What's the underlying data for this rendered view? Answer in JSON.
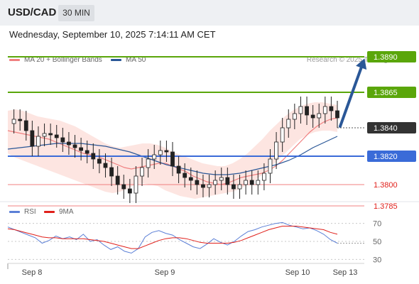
{
  "header": {
    "symbol": "USD/CAD",
    "timeframe": "30 MIN"
  },
  "datetime": "Wednesday, September 10, 2025 7:14:11 AM CET",
  "legend": {
    "items": [
      {
        "label": "MA 20 + Bollinger Bands",
        "color": "#f08080"
      },
      {
        "label": "MA 50",
        "color": "#2a5797"
      }
    ],
    "copyright": "Research © 2025 Trading Central"
  },
  "rsi_legend": {
    "items": [
      {
        "label": "RSI",
        "color": "#5b7fd6"
      },
      {
        "label": "9MA",
        "color": "#e0201b"
      }
    ]
  },
  "chart_data": [
    {
      "type": "candlestick",
      "price_range": [
        1.3775,
        1.3895
      ],
      "last_price": 1.384,
      "levels": [
        {
          "label": "1.3890",
          "value": 1.389,
          "kind": "resistance",
          "color": "#5aa60a"
        },
        {
          "label": "1.3865",
          "value": 1.3865,
          "kind": "resistance",
          "color": "#5aa60a"
        },
        {
          "label": "1.3840",
          "value": 1.384,
          "kind": "last",
          "color": "#333333"
        },
        {
          "label": "1.3820",
          "value": 1.382,
          "kind": "pivot",
          "color": "#3a6bd8"
        },
        {
          "label": "1.3800",
          "value": 1.38,
          "kind": "support",
          "color": "#f08080"
        },
        {
          "label": "1.3785",
          "value": 1.3785,
          "kind": "support",
          "color": "#f08080"
        }
      ],
      "close_path": [
        1.3843,
        1.3846,
        1.3845,
        1.3838,
        1.3827,
        1.3834,
        1.3836,
        1.3835,
        1.3833,
        1.383,
        1.3828,
        1.3826,
        1.3824,
        1.3822,
        1.3818,
        1.3815,
        1.3812,
        1.3806,
        1.38,
        1.3797,
        1.3794,
        1.3806,
        1.3812,
        1.3818,
        1.3821,
        1.3824,
        1.3823,
        1.3813,
        1.3808,
        1.3805,
        1.3803,
        1.38,
        1.3798,
        1.38,
        1.3803,
        1.3805,
        1.38,
        1.3797,
        1.38,
        1.3803,
        1.38,
        1.3803,
        1.3808,
        1.3818,
        1.383,
        1.384,
        1.3846,
        1.385,
        1.3855,
        1.3849,
        1.3847,
        1.385,
        1.3855,
        1.3852,
        1.3847
      ],
      "ma20": [
        1.3838,
        1.3837,
        1.3836,
        1.3835,
        1.3834,
        1.3833,
        1.3832,
        1.383,
        1.3828,
        1.3826,
        1.3824,
        1.3822,
        1.3821,
        1.382,
        1.3818,
        1.3816,
        1.3814,
        1.3812,
        1.3811,
        1.3812,
        1.3813,
        1.3814,
        1.3815,
        1.3815,
        1.3813,
        1.3811,
        1.3809,
        1.3806,
        1.3804,
        1.3802,
        1.3801,
        1.38,
        1.3801,
        1.3803,
        1.3805,
        1.3806,
        1.3807,
        1.3808,
        1.381,
        1.3813,
        1.3817,
        1.3822,
        1.3827,
        1.3832,
        1.3837,
        1.3841,
        1.3844,
        1.3846,
        1.3847
      ],
      "bb_upper": [
        1.3852,
        1.3853,
        1.3852,
        1.385,
        1.3848,
        1.3847,
        1.3846,
        1.3845,
        1.3843,
        1.3841,
        1.3838,
        1.3835,
        1.3832,
        1.3829,
        1.3827,
        1.3826,
        1.3827,
        1.3828,
        1.3829,
        1.3829,
        1.3828,
        1.3826,
        1.3823,
        1.3821,
        1.3819,
        1.3817,
        1.3815,
        1.3814,
        1.3813,
        1.3813,
        1.3815,
        1.3818,
        1.3822,
        1.3827,
        1.3832,
        1.3838,
        1.3843,
        1.3848,
        1.3852,
        1.3855,
        1.3857,
        1.3858,
        1.3858,
        1.3857,
        1.3856
      ],
      "bb_lower": [
        1.3822,
        1.3819,
        1.3817,
        1.3815,
        1.3813,
        1.3811,
        1.3809,
        1.3807,
        1.3805,
        1.3803,
        1.3801,
        1.3799,
        1.3797,
        1.3795,
        1.3794,
        1.3795,
        1.3797,
        1.38,
        1.3801,
        1.38,
        1.3799,
        1.3796,
        1.3794,
        1.3792,
        1.3791,
        1.379,
        1.3791,
        1.3792,
        1.3793,
        1.3794,
        1.3795,
        1.3797,
        1.38,
        1.3803,
        1.3807,
        1.3812,
        1.3817,
        1.3822,
        1.3827,
        1.3832,
        1.3835,
        1.3837,
        1.3838,
        1.3838,
        1.3837
      ],
      "ma50": [
        1.3825,
        1.3826,
        1.3827,
        1.3828,
        1.3829,
        1.3829,
        1.3829,
        1.3828,
        1.3827,
        1.3825,
        1.3823,
        1.382,
        1.3817,
        1.3814,
        1.3812,
        1.381,
        1.3808,
        1.3807,
        1.3807,
        1.3808,
        1.381,
        1.3812,
        1.3814,
        1.3817,
        1.3821,
        1.3826,
        1.383,
        1.3834
      ],
      "forecast": {
        "from": 1.384,
        "to": 1.389
      }
    },
    {
      "type": "line",
      "title": "RSI",
      "ylim": [
        20,
        80
      ],
      "yticks": [
        70,
        50,
        30
      ],
      "series": [
        {
          "name": "RSI",
          "color": "#5b7fd6",
          "values": [
            66,
            63,
            60,
            57,
            54,
            48,
            51,
            56,
            53,
            55,
            52,
            58,
            50,
            52,
            46,
            41,
            44,
            39,
            37,
            42,
            55,
            60,
            62,
            59,
            57,
            52,
            48,
            44,
            42,
            47,
            53,
            49,
            46,
            50,
            56,
            61,
            63,
            66,
            68,
            70,
            71,
            68,
            66,
            64,
            65,
            62,
            58,
            52,
            48
          ]
        },
        {
          "name": "9MA",
          "color": "#e0201b",
          "values": [
            64,
            63,
            61,
            59,
            57,
            55,
            54,
            54,
            53,
            53,
            53,
            53,
            52,
            51,
            50,
            48,
            46,
            44,
            42,
            42,
            45,
            48,
            51,
            53,
            54,
            54,
            53,
            51,
            49,
            48,
            48,
            48,
            48,
            49,
            51,
            54,
            57,
            60,
            63,
            65,
            67,
            67,
            67,
            66,
            65,
            64,
            63,
            60,
            58
          ]
        }
      ]
    }
  ],
  "xaxis": {
    "ticks": [
      "Sep 8",
      "Sep 9",
      "Sep 10",
      "Sep 13"
    ]
  }
}
